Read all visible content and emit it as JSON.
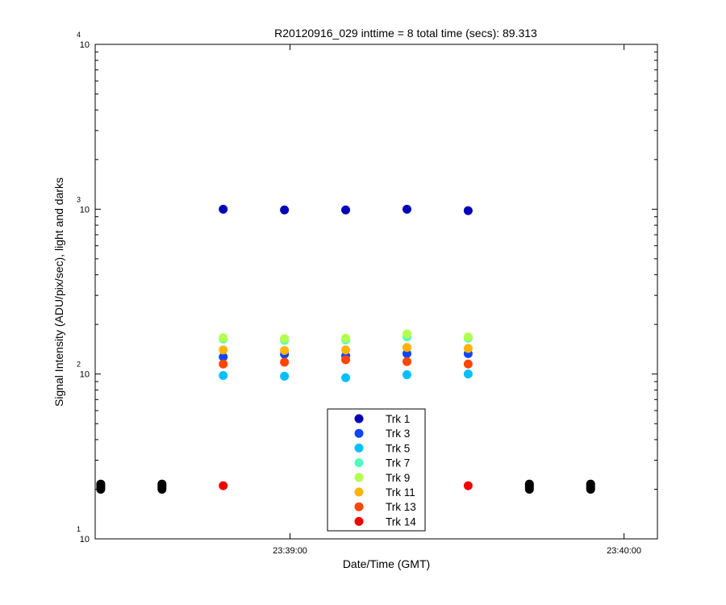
{
  "chart_data": {
    "type": "scatter",
    "title": "R20120916_029 inttime = 8 total time (secs): 89.313",
    "xlabel": "Date/Time (GMT)",
    "ylabel": "Signal Intensity (ADU/pix/sec), light and darks",
    "y_scale": "log",
    "ylim": [
      10,
      10000
    ],
    "xlim": [
      "23:38:25",
      "23:40:06"
    ],
    "x_ticks": [
      "23:39:00",
      "23:40:00"
    ],
    "y_ticks": [
      {
        "value": 10,
        "base": "10",
        "exp": "1"
      },
      {
        "value": 100,
        "base": "10",
        "exp": "2"
      },
      {
        "value": 1000,
        "base": "10",
        "exp": "3"
      },
      {
        "value": 10000,
        "base": "10",
        "exp": "4"
      }
    ],
    "grid": false,
    "legend_position": "bottom-center",
    "series": [
      {
        "name": "Trk 1",
        "color": "#0000b8",
        "points": [
          [
            "23:38:48",
            1000
          ],
          [
            "23:38:59",
            990
          ],
          [
            "23:39:10",
            990
          ],
          [
            "23:39:21",
            1000
          ],
          [
            "23:39:32",
            980
          ]
        ]
      },
      {
        "name": "Trk 3",
        "color": "#0d45ff",
        "points": [
          [
            "23:38:48",
            127
          ],
          [
            "23:38:59",
            132
          ],
          [
            "23:39:10",
            129
          ],
          [
            "23:39:21",
            133
          ],
          [
            "23:39:32",
            133
          ]
        ]
      },
      {
        "name": "Trk 5",
        "color": "#00bfff",
        "points": [
          [
            "23:38:48",
            98
          ],
          [
            "23:38:59",
            97
          ],
          [
            "23:39:10",
            95
          ],
          [
            "23:39:21",
            99
          ],
          [
            "23:39:32",
            100
          ]
        ]
      },
      {
        "name": "Trk 7",
        "color": "#4dffbf",
        "points": [
          [
            "23:38:48",
            163
          ],
          [
            "23:38:59",
            160
          ],
          [
            "23:39:10",
            161
          ],
          [
            "23:39:21",
            168
          ],
          [
            "23:39:32",
            165
          ]
        ]
      },
      {
        "name": "Trk 9",
        "color": "#b3ff4d",
        "points": [
          [
            "23:38:48",
            166
          ],
          [
            "23:38:59",
            164
          ],
          [
            "23:39:10",
            165
          ],
          [
            "23:39:21",
            175
          ],
          [
            "23:39:32",
            168
          ]
        ]
      },
      {
        "name": "Trk 11",
        "color": "#ffb300",
        "points": [
          [
            "23:38:48",
            140
          ],
          [
            "23:38:59",
            139
          ],
          [
            "23:39:10",
            140
          ],
          [
            "23:39:21",
            145
          ],
          [
            "23:39:32",
            143
          ]
        ]
      },
      {
        "name": "Trk 13",
        "color": "#ff4500",
        "points": [
          [
            "23:38:48",
            115
          ],
          [
            "23:38:59",
            118
          ],
          [
            "23:39:10",
            122
          ],
          [
            "23:39:21",
            119
          ],
          [
            "23:39:32",
            115
          ]
        ]
      },
      {
        "name": "Trk 14",
        "color": "#ee0000",
        "points": [
          [
            "23:38:48",
            21
          ],
          [
            "23:39:21",
            21
          ],
          [
            "23:39:32",
            21
          ]
        ]
      },
      {
        "name": "",
        "color": "#000000",
        "points": [
          [
            "23:38:26",
            20
          ],
          [
            "23:38:26",
            20.5
          ],
          [
            "23:38:26",
            21
          ],
          [
            "23:38:26",
            21.5
          ],
          [
            "23:38:37",
            20
          ],
          [
            "23:38:37",
            20.5
          ],
          [
            "23:38:37",
            21
          ],
          [
            "23:38:37",
            21.5
          ],
          [
            "23:39:43",
            20
          ],
          [
            "23:39:43",
            20.5
          ],
          [
            "23:39:43",
            21
          ],
          [
            "23:39:43",
            21.5
          ],
          [
            "23:39:54",
            20
          ],
          [
            "23:39:54",
            20.5
          ],
          [
            "23:39:54",
            21
          ],
          [
            "23:39:54",
            21.5
          ]
        ]
      }
    ]
  }
}
